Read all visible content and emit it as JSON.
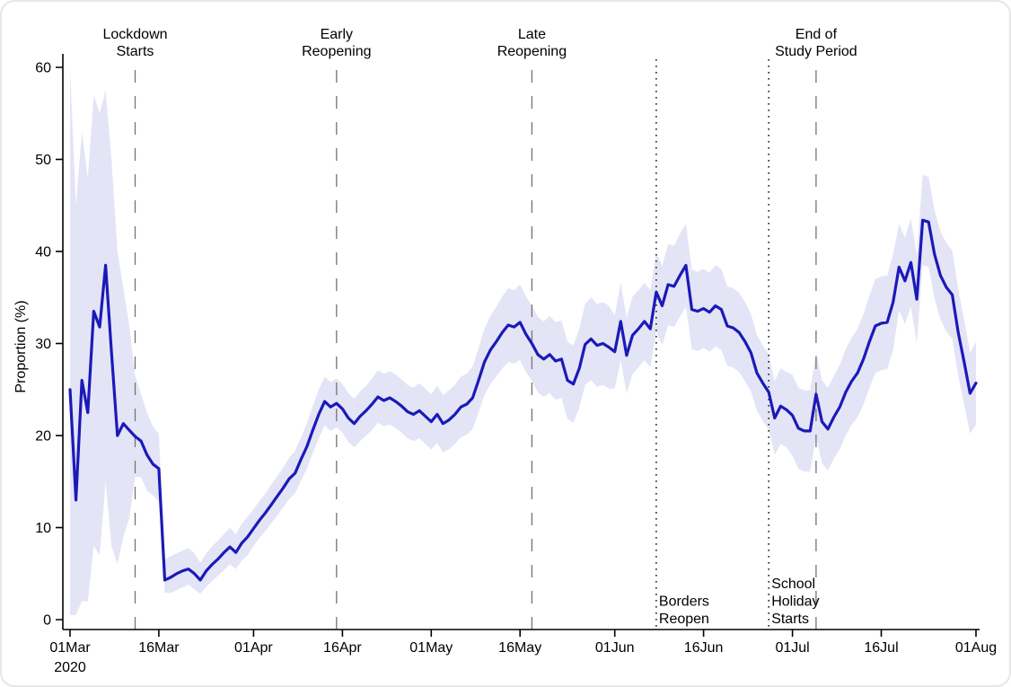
{
  "chart_data": {
    "type": "line",
    "title": "",
    "xlabel": "",
    "ylabel": "Proportion (%)",
    "ylim": [
      0,
      60
    ],
    "grid": false,
    "legend": "none",
    "line_color": "#1a1ab8",
    "band_color": "#e4e4f7",
    "axis_color": "#000000",
    "refline_dashed_color": "#737373",
    "refline_dotted_color": "#111111",
    "x_unit": "day index from 01 Mar 2020 (0) to 01 Aug 2020 (153)",
    "x_ticks": [
      {
        "day": 0,
        "label": "01Mar",
        "sublabel": "2020"
      },
      {
        "day": 15,
        "label": "16Mar"
      },
      {
        "day": 31,
        "label": "01Apr"
      },
      {
        "day": 46,
        "label": "16Apr"
      },
      {
        "day": 61,
        "label": "01May"
      },
      {
        "day": 76,
        "label": "16May"
      },
      {
        "day": 92,
        "label": "01Jun"
      },
      {
        "day": 107,
        "label": "16Jun"
      },
      {
        "day": 122,
        "label": "01Jul"
      },
      {
        "day": 137,
        "label": "16Jul"
      },
      {
        "day": 153,
        "label": "01Aug"
      }
    ],
    "y_ticks": [
      0,
      10,
      20,
      30,
      40,
      50,
      60
    ],
    "reference_lines": [
      {
        "id": "lockdown-starts",
        "label_lines": [
          "Lockdown",
          "Starts"
        ],
        "day": 11,
        "style": "dashed",
        "label_position": "top"
      },
      {
        "id": "early-reopening",
        "label_lines": [
          "Early",
          "Reopening"
        ],
        "day": 45,
        "style": "dashed",
        "label_position": "top"
      },
      {
        "id": "late-reopening",
        "label_lines": [
          "Late",
          "Reopening"
        ],
        "day": 78,
        "style": "dashed",
        "label_position": "top"
      },
      {
        "id": "borders-reopen",
        "label_lines": [
          "Borders",
          "Reopen"
        ],
        "day": 99,
        "style": "dotted",
        "label_position": "bottom-right"
      },
      {
        "id": "school-holiday-starts",
        "label_lines": [
          "School",
          "Holiday",
          "Starts"
        ],
        "day": 118,
        "style": "dotted",
        "label_position": "bottom-right"
      },
      {
        "id": "end-of-study-period",
        "label_lines": [
          "End of",
          "Study Period"
        ],
        "day": 126,
        "style": "dashed",
        "label_position": "top"
      }
    ],
    "values": [
      25.0,
      13.0,
      26.0,
      22.5,
      33.5,
      31.8,
      38.5,
      29.0,
      20.0,
      21.3,
      20.6,
      19.9,
      19.4,
      17.9,
      16.9,
      16.4,
      4.3,
      4.6,
      5.0,
      5.3,
      5.5,
      5.0,
      4.3,
      5.3,
      6.0,
      6.6,
      7.3,
      7.9,
      7.3,
      8.3,
      9.0,
      9.9,
      10.8,
      11.6,
      12.5,
      13.4,
      14.3,
      15.3,
      15.9,
      17.4,
      18.8,
      20.6,
      22.3,
      23.7,
      23.1,
      23.5,
      22.9,
      21.9,
      21.3,
      22.1,
      22.7,
      23.4,
      24.2,
      23.8,
      24.1,
      23.7,
      23.2,
      22.6,
      22.3,
      22.7,
      22.1,
      21.5,
      22.3,
      21.3,
      21.7,
      22.3,
      23.1,
      23.4,
      24.1,
      26.0,
      28.0,
      29.3,
      30.2,
      31.2,
      32.0,
      31.8,
      32.3,
      31.0,
      30.0,
      28.8,
      28.3,
      28.8,
      28.1,
      28.3,
      26.0,
      25.6,
      27.3,
      29.9,
      30.5,
      29.8,
      30.0,
      29.6,
      29.1,
      32.4,
      28.7,
      30.9,
      31.6,
      32.4,
      31.6,
      35.6,
      34.1,
      36.4,
      36.2,
      37.4,
      38.5,
      33.7,
      33.5,
      33.8,
      33.4,
      34.1,
      33.7,
      31.9,
      31.7,
      31.2,
      30.2,
      29.0,
      26.8,
      25.7,
      24.7,
      21.9,
      23.2,
      22.8,
      22.2,
      20.8,
      20.5,
      20.5,
      24.5,
      21.5,
      20.7,
      22.0,
      23.1,
      24.7,
      25.9,
      26.8,
      28.3,
      30.2,
      31.9,
      32.2,
      32.3,
      34.5,
      38.3,
      36.8,
      38.8,
      34.8,
      43.4,
      43.2,
      39.7,
      37.4,
      36.1,
      35.3,
      31.2,
      28.0,
      24.6,
      25.7
    ],
    "ci_lower": [
      0.5,
      0.5,
      2.0,
      2.0,
      8.0,
      7.0,
      15.0,
      8.0,
      6.0,
      9.0,
      11.0,
      15.5,
      15.5,
      14.0,
      13.5,
      12.8,
      2.9,
      2.9,
      3.2,
      3.5,
      3.8,
      3.3,
      2.8,
      3.6,
      4.2,
      4.8,
      5.4,
      6.0,
      5.5,
      6.4,
      7.0,
      8.0,
      8.9,
      9.6,
      10.5,
      11.3,
      12.2,
      13.1,
      13.7,
      15.1,
      16.4,
      18.1,
      19.7,
      21.1,
      20.5,
      20.9,
      20.3,
      19.3,
      18.7,
      19.4,
      20.0,
      20.6,
      21.4,
      21.0,
      21.2,
      20.8,
      20.3,
      19.7,
      19.4,
      19.7,
      19.1,
      18.5,
      19.2,
      18.2,
      18.5,
      19.1,
      19.8,
      20.1,
      20.7,
      22.5,
      24.4,
      25.6,
      26.4,
      27.3,
      28.0,
      27.8,
      28.2,
      26.9,
      25.9,
      24.7,
      24.2,
      24.6,
      23.9,
      24.1,
      21.8,
      21.4,
      23.0,
      25.5,
      26.0,
      25.3,
      25.5,
      25.1,
      25.1,
      28.2,
      24.6,
      26.7,
      27.4,
      28.2,
      27.4,
      31.3,
      29.8,
      32.0,
      31.8,
      32.9,
      34.0,
      29.4,
      29.2,
      29.5,
      29.1,
      29.7,
      29.3,
      27.6,
      27.4,
      26.9,
      25.9,
      24.8,
      22.7,
      21.6,
      20.6,
      17.9,
      19.1,
      18.7,
      17.8,
      16.4,
      16.1,
      16.1,
      19.9,
      17.0,
      16.2,
      17.5,
      18.5,
      20.0,
      21.2,
      22.0,
      23.4,
      25.2,
      26.8,
      27.1,
      27.2,
      29.3,
      33.6,
      32.1,
      34.0,
      30.0,
      38.5,
      38.3,
      34.9,
      32.6,
      31.3,
      30.5,
      26.5,
      23.4,
      20.2,
      21.2
    ],
    "ci_upper": [
      60.0,
      45.0,
      53.0,
      48.0,
      57.0,
      55.0,
      57.5,
      50.0,
      40.0,
      36.0,
      32.0,
      26.5,
      24.5,
      22.5,
      21.0,
      20.2,
      6.5,
      6.9,
      7.2,
      7.5,
      7.8,
      7.2,
      6.2,
      7.2,
      8.0,
      8.6,
      9.3,
      10.0,
      9.3,
      10.4,
      11.2,
      12.0,
      12.9,
      13.7,
      14.7,
      15.6,
      16.5,
      17.6,
      18.3,
      19.8,
      21.3,
      23.2,
      25.0,
      26.4,
      25.8,
      26.2,
      25.6,
      24.6,
      24.0,
      24.8,
      25.4,
      26.2,
      27.1,
      26.7,
      27.0,
      26.6,
      26.1,
      25.5,
      25.2,
      25.7,
      25.1,
      24.5,
      25.4,
      24.4,
      24.9,
      25.5,
      26.4,
      26.7,
      27.5,
      29.5,
      31.6,
      33.0,
      34.0,
      35.1,
      36.0,
      35.8,
      36.4,
      35.1,
      34.1,
      32.9,
      32.4,
      33.0,
      32.3,
      32.5,
      30.2,
      29.8,
      31.6,
      34.3,
      35.0,
      34.3,
      34.5,
      34.1,
      33.1,
      36.6,
      32.8,
      35.1,
      35.8,
      36.6,
      35.8,
      39.9,
      38.4,
      40.8,
      40.6,
      41.9,
      43.0,
      38.0,
      37.8,
      38.1,
      37.7,
      38.5,
      38.1,
      36.2,
      36.0,
      35.5,
      34.5,
      33.2,
      30.9,
      29.8,
      28.8,
      25.9,
      27.3,
      26.9,
      26.6,
      25.2,
      24.9,
      24.9,
      29.1,
      26.0,
      25.2,
      26.5,
      27.7,
      29.4,
      30.6,
      31.6,
      33.2,
      35.2,
      37.0,
      37.3,
      37.4,
      39.7,
      43.0,
      41.5,
      43.6,
      39.6,
      48.3,
      48.1,
      44.5,
      42.2,
      40.9,
      40.1,
      35.9,
      32.6,
      29.0,
      30.2
    ]
  }
}
